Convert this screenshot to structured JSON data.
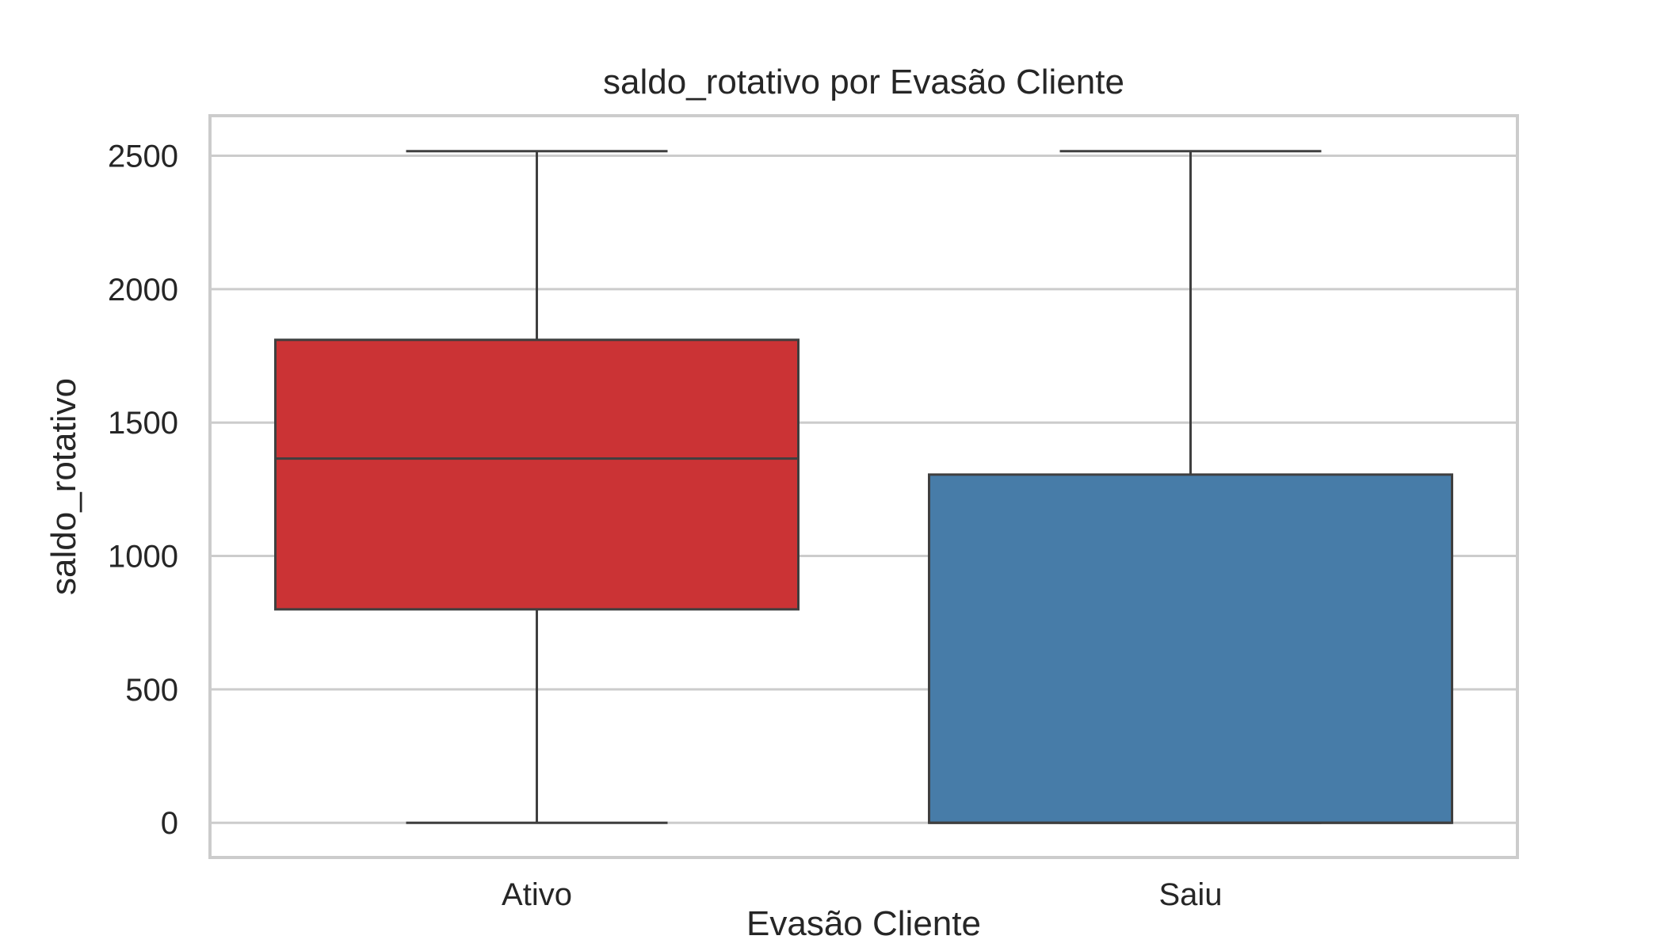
{
  "chart_data": {
    "type": "box",
    "title": "saldo_rotativo por Evasão Cliente",
    "xlabel": "Evasão Cliente",
    "ylabel": "saldo_rotativo",
    "ylim": [
      -130,
      2650
    ],
    "yticks": [
      0,
      500,
      1000,
      1500,
      2000,
      2500
    ],
    "grid": true,
    "categories": [
      "Ativo",
      "Saiu"
    ],
    "boxes": [
      {
        "category": "Ativo",
        "min": 0,
        "q1": 800,
        "median": 1365,
        "q3": 1810,
        "max": 2517,
        "color": "#cb3335"
      },
      {
        "category": "Saiu",
        "min": 0,
        "q1": 0,
        "median": 0,
        "q3": 1305,
        "max": 2517,
        "color": "#477ca8"
      }
    ]
  }
}
